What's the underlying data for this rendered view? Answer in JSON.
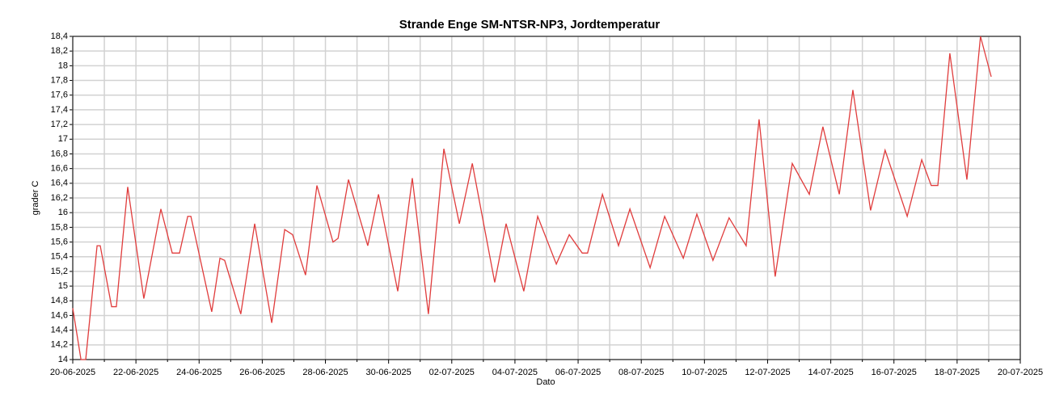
{
  "chart_data": {
    "type": "line",
    "title": "Strande Enge SM-NTSR-NP3, Jordtemperatur",
    "xlabel": "Dato",
    "ylabel": "grader C",
    "xlim": [
      0,
      30
    ],
    "ylim": [
      14,
      18.4
    ],
    "xticks": [
      {
        "value": 0,
        "label": "20-06-2025"
      },
      {
        "value": 2,
        "label": "22-06-2025"
      },
      {
        "value": 4,
        "label": "24-06-2025"
      },
      {
        "value": 6,
        "label": "26-06-2025"
      },
      {
        "value": 8,
        "label": "28-06-2025"
      },
      {
        "value": 10,
        "label": "30-06-2025"
      },
      {
        "value": 12,
        "label": "02-07-2025"
      },
      {
        "value": 14,
        "label": "04-07-2025"
      },
      {
        "value": 16,
        "label": "06-07-2025"
      },
      {
        "value": 18,
        "label": "08-07-2025"
      },
      {
        "value": 20,
        "label": "10-07-2025"
      },
      {
        "value": 22,
        "label": "12-07-2025"
      },
      {
        "value": 24,
        "label": "14-07-2025"
      },
      {
        "value": 26,
        "label": "16-07-2025"
      },
      {
        "value": 28,
        "label": "18-07-2025"
      },
      {
        "value": 30,
        "label": "20-07-2025"
      }
    ],
    "xminorticks": [
      1,
      3,
      5,
      7,
      9,
      11,
      13,
      15,
      17,
      19,
      21,
      23,
      25,
      27,
      29
    ],
    "yticks": [
      {
        "value": 14,
        "label": "14"
      },
      {
        "value": 14.2,
        "label": "14,2"
      },
      {
        "value": 14.4,
        "label": "14,4"
      },
      {
        "value": 14.6,
        "label": "14,6"
      },
      {
        "value": 14.8,
        "label": "14,8"
      },
      {
        "value": 15,
        "label": "15"
      },
      {
        "value": 15.2,
        "label": "15,2"
      },
      {
        "value": 15.4,
        "label": "15,4"
      },
      {
        "value": 15.6,
        "label": "15,6"
      },
      {
        "value": 15.8,
        "label": "15,8"
      },
      {
        "value": 16,
        "label": "16"
      },
      {
        "value": 16.2,
        "label": "16,2"
      },
      {
        "value": 16.4,
        "label": "16,4"
      },
      {
        "value": 16.6,
        "label": "16,6"
      },
      {
        "value": 16.8,
        "label": "16,8"
      },
      {
        "value": 17,
        "label": "17"
      },
      {
        "value": 17.2,
        "label": "17,2"
      },
      {
        "value": 17.4,
        "label": "17,4"
      },
      {
        "value": 17.6,
        "label": "17,6"
      },
      {
        "value": 17.8,
        "label": "17,8"
      },
      {
        "value": 18,
        "label": "18"
      },
      {
        "value": 18.2,
        "label": "18,2"
      },
      {
        "value": 18.4,
        "label": "18,4"
      }
    ],
    "grid": true,
    "x": [
      0,
      0.26,
      0.41,
      0.77,
      0.87,
      1.23,
      1.38,
      1.74,
      2.25,
      2.79,
      3.15,
      3.38,
      3.64,
      3.74,
      4.4,
      4.66,
      4.81,
      5.32,
      5.76,
      6.3,
      6.71,
      6.96,
      7.37,
      7.73,
      8.24,
      8.4,
      8.73,
      9.34,
      9.68,
      10.29,
      10.75,
      11.26,
      11.75,
      12.24,
      12.65,
      13.36,
      13.72,
      14.28,
      14.72,
      15.31,
      15.72,
      16.13,
      16.3,
      16.77,
      17.28,
      17.64,
      18.28,
      18.74,
      19.33,
      19.76,
      20.27,
      20.78,
      21.32,
      21.73,
      22.24,
      22.78,
      23.32,
      23.75,
      24.27,
      24.7,
      25.26,
      25.72,
      26.42,
      26.88,
      27.18,
      27.39,
      27.77,
      28.31,
      28.74,
      29.08
    ],
    "series": [
      {
        "color": "#e03c3c",
        "values": [
          14.7,
          14.0,
          14.0,
          15.55,
          15.55,
          14.72,
          14.72,
          16.35,
          14.83,
          16.05,
          15.45,
          15.45,
          15.95,
          15.95,
          14.65,
          15.38,
          15.35,
          14.62,
          15.85,
          14.5,
          15.77,
          15.7,
          15.15,
          16.37,
          15.6,
          15.65,
          16.45,
          15.55,
          16.25,
          14.93,
          16.47,
          14.62,
          16.87,
          15.85,
          16.67,
          15.05,
          15.85,
          14.93,
          15.95,
          15.3,
          15.7,
          15.45,
          15.45,
          16.25,
          15.55,
          16.05,
          15.25,
          15.95,
          15.38,
          15.98,
          15.35,
          15.93,
          15.55,
          17.27,
          15.13,
          16.67,
          16.25,
          17.17,
          16.25,
          17.67,
          16.03,
          16.85,
          15.95,
          16.72,
          16.37,
          16.37,
          18.17,
          16.45,
          18.4,
          17.85
        ]
      }
    ]
  }
}
